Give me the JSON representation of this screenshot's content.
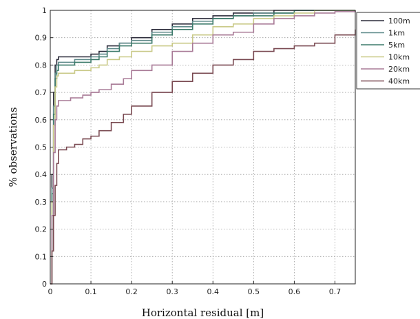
{
  "chart_data": {
    "type": "line",
    "title": "",
    "xlabel": "Horizontal residual [m]",
    "ylabel": "% observations",
    "xlim": [
      0,
      0.75
    ],
    "ylim": [
      0,
      1
    ],
    "xticks": [
      "0",
      "0.1",
      "0.2",
      "0.3",
      "0.4",
      "0.5",
      "0.6",
      "0.7"
    ],
    "yticks": [
      "0",
      "0.1",
      "0.2",
      "0.3",
      "0.4",
      "0.5",
      "0.6",
      "0.7",
      "0.8",
      "0.9",
      "1"
    ],
    "grid": true,
    "legend_position": "right-outside-top",
    "series": [
      {
        "name": "100m",
        "color": "#2b2b3a",
        "x": [
          0,
          0.004,
          0.008,
          0.012,
          0.016,
          0.02,
          0.06,
          0.1,
          0.12,
          0.14,
          0.17,
          0.2,
          0.25,
          0.3,
          0.35,
          0.4,
          0.45,
          0.5,
          0.55,
          0.6,
          0.65,
          0.7,
          0.75
        ],
        "y": [
          0,
          0.4,
          0.7,
          0.8,
          0.82,
          0.83,
          0.83,
          0.84,
          0.85,
          0.87,
          0.88,
          0.9,
          0.93,
          0.95,
          0.97,
          0.98,
          0.99,
          0.99,
          1.0,
          1.0,
          1.0,
          1.0,
          1.0
        ]
      },
      {
        "name": "1km",
        "color": "#5f8a8a",
        "x": [
          0,
          0.004,
          0.008,
          0.012,
          0.016,
          0.02,
          0.06,
          0.1,
          0.12,
          0.14,
          0.17,
          0.2,
          0.25,
          0.3,
          0.35,
          0.4,
          0.45,
          0.5,
          0.55,
          0.6,
          0.65,
          0.7,
          0.75
        ],
        "y": [
          0,
          0.35,
          0.65,
          0.77,
          0.8,
          0.81,
          0.82,
          0.83,
          0.84,
          0.86,
          0.88,
          0.89,
          0.92,
          0.94,
          0.96,
          0.97,
          0.98,
          0.99,
          0.99,
          1.0,
          1.0,
          1.0,
          1.0
        ]
      },
      {
        "name": "5km",
        "color": "#3c7a6a",
        "x": [
          0,
          0.004,
          0.008,
          0.012,
          0.016,
          0.02,
          0.06,
          0.1,
          0.12,
          0.14,
          0.17,
          0.2,
          0.25,
          0.3,
          0.35,
          0.4,
          0.45,
          0.5,
          0.55,
          0.6,
          0.65,
          0.7,
          0.75
        ],
        "y": [
          0,
          0.33,
          0.62,
          0.75,
          0.78,
          0.8,
          0.81,
          0.82,
          0.83,
          0.85,
          0.87,
          0.88,
          0.91,
          0.93,
          0.95,
          0.97,
          0.98,
          0.98,
          0.99,
          1.0,
          1.0,
          1.0,
          1.0
        ]
      },
      {
        "name": "10km",
        "color": "#c9c987",
        "x": [
          0,
          0.004,
          0.008,
          0.012,
          0.016,
          0.02,
          0.06,
          0.1,
          0.12,
          0.14,
          0.17,
          0.2,
          0.25,
          0.3,
          0.35,
          0.4,
          0.45,
          0.5,
          0.55,
          0.6,
          0.65,
          0.7,
          0.75
        ],
        "y": [
          0,
          0.3,
          0.58,
          0.72,
          0.76,
          0.77,
          0.78,
          0.79,
          0.8,
          0.82,
          0.83,
          0.85,
          0.87,
          0.88,
          0.91,
          0.94,
          0.95,
          0.97,
          0.98,
          0.99,
          1.0,
          1.0,
          1.0
        ]
      },
      {
        "name": "20km",
        "color": "#a87a96",
        "x": [
          0,
          0.004,
          0.008,
          0.012,
          0.016,
          0.02,
          0.05,
          0.08,
          0.1,
          0.12,
          0.15,
          0.18,
          0.2,
          0.25,
          0.3,
          0.35,
          0.4,
          0.45,
          0.5,
          0.55,
          0.6,
          0.65,
          0.7,
          0.75
        ],
        "y": [
          0,
          0.25,
          0.48,
          0.6,
          0.65,
          0.67,
          0.68,
          0.69,
          0.7,
          0.71,
          0.73,
          0.75,
          0.78,
          0.8,
          0.85,
          0.88,
          0.91,
          0.92,
          0.95,
          0.97,
          0.98,
          0.99,
          0.995,
          1.0
        ]
      },
      {
        "name": "40km",
        "color": "#7a4a52",
        "x": [
          0,
          0.004,
          0.008,
          0.012,
          0.016,
          0.02,
          0.04,
          0.06,
          0.08,
          0.1,
          0.12,
          0.15,
          0.18,
          0.2,
          0.25,
          0.3,
          0.35,
          0.4,
          0.45,
          0.5,
          0.55,
          0.6,
          0.65,
          0.7,
          0.75
        ],
        "y": [
          0,
          0.12,
          0.25,
          0.36,
          0.44,
          0.49,
          0.5,
          0.51,
          0.53,
          0.54,
          0.56,
          0.59,
          0.62,
          0.65,
          0.7,
          0.74,
          0.77,
          0.8,
          0.82,
          0.85,
          0.86,
          0.87,
          0.88,
          0.91,
          0.93
        ]
      }
    ]
  }
}
